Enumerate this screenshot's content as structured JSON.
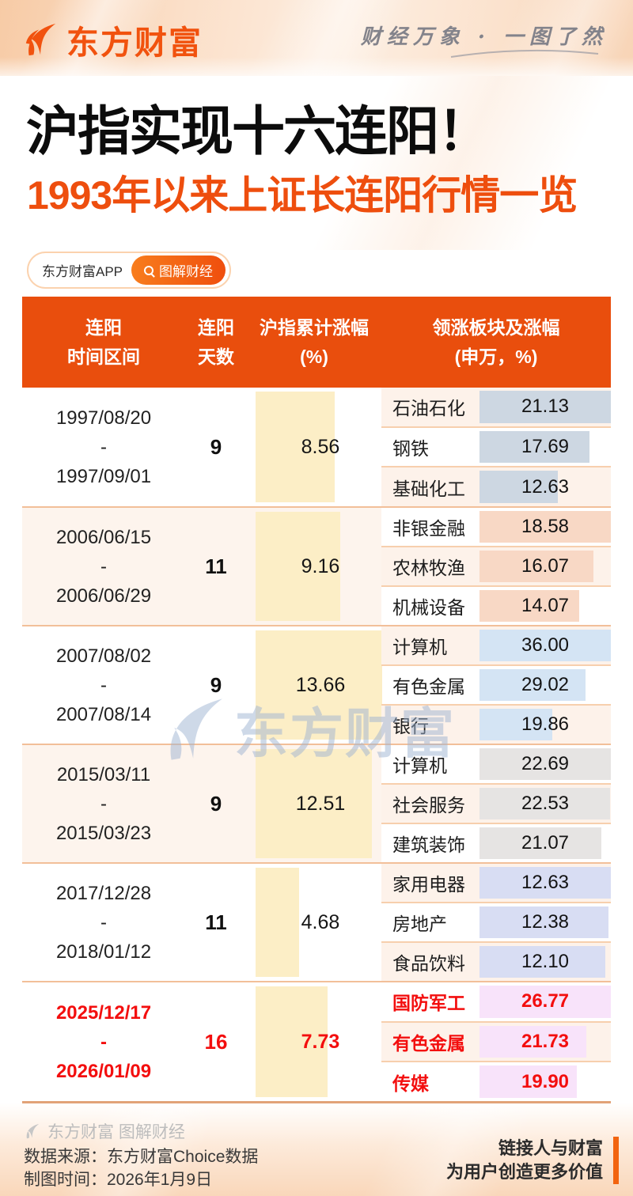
{
  "page": {
    "brand_name": "东方财富",
    "header_slogan": "财经万象 · 一图了然",
    "title": "沪指实现十六连阳！",
    "subtitle": "1993年以来上证长连阳行情一览",
    "app_tag": "东方财富APP",
    "search_tag": "图解财经",
    "watermark_text": "东方财富",
    "footer_watermark": "东方财富 图解财经",
    "footer_source": "数据来源：东方财富Choice数据",
    "footer_date": "制图时间：2026年1月9日",
    "footer_slogan1": "链接人与财富",
    "footer_slogan2": "为用户创造更多价值"
  },
  "colors": {
    "accent_orange": "#e94e0d",
    "highlight_red": "#f30e0e",
    "gain_bar": "#fceec6",
    "group_alt_bg": "#fdf4ed",
    "subrow_alt_bg": "#fdf2ea"
  },
  "table": {
    "headers": [
      {
        "line1": "连阳",
        "line2": "时间区间"
      },
      {
        "line1": "连阳",
        "line2": "天数"
      },
      {
        "line1": "沪指累计涨幅",
        "line2": "(%)"
      },
      {
        "line1": "领涨板块及涨幅",
        "line2": "(申万，%)"
      }
    ],
    "groups": [
      {
        "start": "1997/08/20",
        "end": "1997/09/01",
        "days": "9",
        "gain": 8.56,
        "gain_label": "8.56",
        "bar_color": "#cdd7e2",
        "sectors": [
          {
            "name": "石油石化",
            "value": 21.13,
            "value_label": "21.13"
          },
          {
            "name": "钢铁",
            "value": 17.69,
            "value_label": "17.69"
          },
          {
            "name": "基础化工",
            "value": 12.63,
            "value_label": "12.63"
          }
        ]
      },
      {
        "start": "2006/06/15",
        "end": "2006/06/29",
        "days": "11",
        "gain": 9.16,
        "gain_label": "9.16",
        "bar_color": "#f8d8c5",
        "sectors": [
          {
            "name": "非银金融",
            "value": 18.58,
            "value_label": "18.58"
          },
          {
            "name": "农林牧渔",
            "value": 16.07,
            "value_label": "16.07"
          },
          {
            "name": "机械设备",
            "value": 14.07,
            "value_label": "14.07"
          }
        ]
      },
      {
        "start": "2007/08/02",
        "end": "2007/08/14",
        "days": "9",
        "gain": 13.66,
        "gain_label": "13.66",
        "bar_color": "#d4e4f4",
        "sectors": [
          {
            "name": "计算机",
            "value": 36.0,
            "value_label": "36.00"
          },
          {
            "name": "有色金属",
            "value": 29.02,
            "value_label": "29.02"
          },
          {
            "name": "银行",
            "value": 19.86,
            "value_label": "19.86"
          }
        ]
      },
      {
        "start": "2015/03/11",
        "end": "2015/03/23",
        "days": "9",
        "gain": 12.51,
        "gain_label": "12.51",
        "bar_color": "#e6e4e3",
        "sectors": [
          {
            "name": "计算机",
            "value": 22.69,
            "value_label": "22.69"
          },
          {
            "name": "社会服务",
            "value": 22.53,
            "value_label": "22.53"
          },
          {
            "name": "建筑装饰",
            "value": 21.07,
            "value_label": "21.07"
          }
        ]
      },
      {
        "start": "2017/12/28",
        "end": "2018/01/12",
        "days": "11",
        "gain": 4.68,
        "gain_label": "4.68",
        "bar_color": "#d8ddf3",
        "sectors": [
          {
            "name": "家用电器",
            "value": 12.63,
            "value_label": "12.63"
          },
          {
            "name": "房地产",
            "value": 12.38,
            "value_label": "12.38"
          },
          {
            "name": "食品饮料",
            "value": 12.1,
            "value_label": "12.10"
          }
        ]
      },
      {
        "start": "2025/12/17",
        "end": "2026/01/09",
        "days": "16",
        "gain": 7.73,
        "gain_label": "7.73",
        "bar_color": "#f8e3fa",
        "highlight": true,
        "sectors": [
          {
            "name": "国防军工",
            "value": 26.77,
            "value_label": "26.77"
          },
          {
            "name": "有色金属",
            "value": 21.73,
            "value_label": "21.73"
          },
          {
            "name": "传媒",
            "value": 19.9,
            "value_label": "19.90"
          }
        ]
      }
    ]
  },
  "chart_data": {
    "type": "table",
    "title": "沪指实现十六连阳！1993年以来上证长连阳行情一览",
    "columns": [
      "连阳时间区间",
      "连阳天数",
      "沪指累计涨幅(%)",
      "领涨板块及涨幅(申万，%)"
    ],
    "rows": [
      [
        "1997/08/20 - 1997/09/01",
        9,
        8.56,
        [
          [
            "石油石化",
            21.13
          ],
          [
            "钢铁",
            17.69
          ],
          [
            "基础化工",
            12.63
          ]
        ]
      ],
      [
        "2006/06/15 - 2006/06/29",
        11,
        9.16,
        [
          [
            "非银金融",
            18.58
          ],
          [
            "农林牧渔",
            16.07
          ],
          [
            "机械设备",
            14.07
          ]
        ]
      ],
      [
        "2007/08/02 - 2007/08/14",
        9,
        13.66,
        [
          [
            "计算机",
            36.0
          ],
          [
            "有色金属",
            29.02
          ],
          [
            "银行",
            19.86
          ]
        ]
      ],
      [
        "2015/03/11 - 2015/03/23",
        9,
        12.51,
        [
          [
            "计算机",
            22.69
          ],
          [
            "社会服务",
            22.53
          ],
          [
            "建筑装饰",
            21.07
          ]
        ]
      ],
      [
        "2017/12/28 - 2018/01/12",
        11,
        4.68,
        [
          [
            "家用电器",
            12.63
          ],
          [
            "房地产",
            12.38
          ],
          [
            "食品饮料",
            12.1
          ]
        ]
      ],
      [
        "2025/12/17 - 2026/01/09",
        16,
        7.73,
        [
          [
            "国防军工",
            26.77
          ],
          [
            "有色金属",
            21.73
          ],
          [
            "传媒",
            19.9
          ]
        ]
      ]
    ],
    "notes": "最后一行为当前行情，红色高亮；沪指累计涨幅与板块涨幅均带比例数据条"
  }
}
